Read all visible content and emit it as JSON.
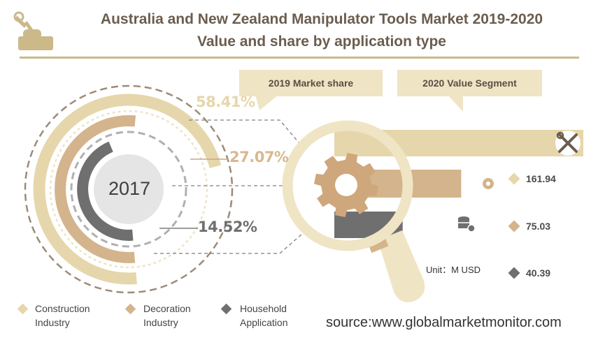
{
  "title_line1": "Australia and New Zealand Manipulator Tools Market 2019-2020",
  "title_line2": "Value and share by application type",
  "bubble_2019": "2019 Market share",
  "bubble_2020": "2020 Value Segment",
  "year_label": "2017",
  "unit_label": "Unit：M USD",
  "source": "source:www.globalmarketmonitor.com",
  "colors": {
    "construction": "#e6d6ab",
    "decoration": "#d4b48c",
    "household": "#6f6f6f",
    "title": "#6b5d4e",
    "rule": "#cbb98a"
  },
  "icons": [
    "tools-icon",
    "gear-icon",
    "database-gear-icon",
    "hand-wrench-icon",
    "magnifier-icon"
  ],
  "legend": [
    {
      "line1": "Construction",
      "line2": "Industry"
    },
    {
      "line1": "Decoration",
      "line2": "Industry"
    },
    {
      "line1": "Household",
      "line2": "Application"
    }
  ],
  "chart_data": [
    {
      "type": "pie",
      "categories": [
        "Construction Industry",
        "Decoration Industry",
        "Household Application"
      ],
      "values": [
        58.41,
        27.07,
        14.52
      ],
      "labels": [
        "58.41%",
        "27.07%",
        "14.52%"
      ],
      "title": "2019 Market share"
    },
    {
      "type": "bar",
      "categories": [
        "Construction Industry",
        "Decoration Industry",
        "Household Application"
      ],
      "values": [
        161.94,
        75.03,
        40.39
      ],
      "labels": [
        "161.94",
        "75.03",
        "40.39"
      ],
      "title": "2020 Value Segment",
      "ylabel": "M USD"
    }
  ]
}
